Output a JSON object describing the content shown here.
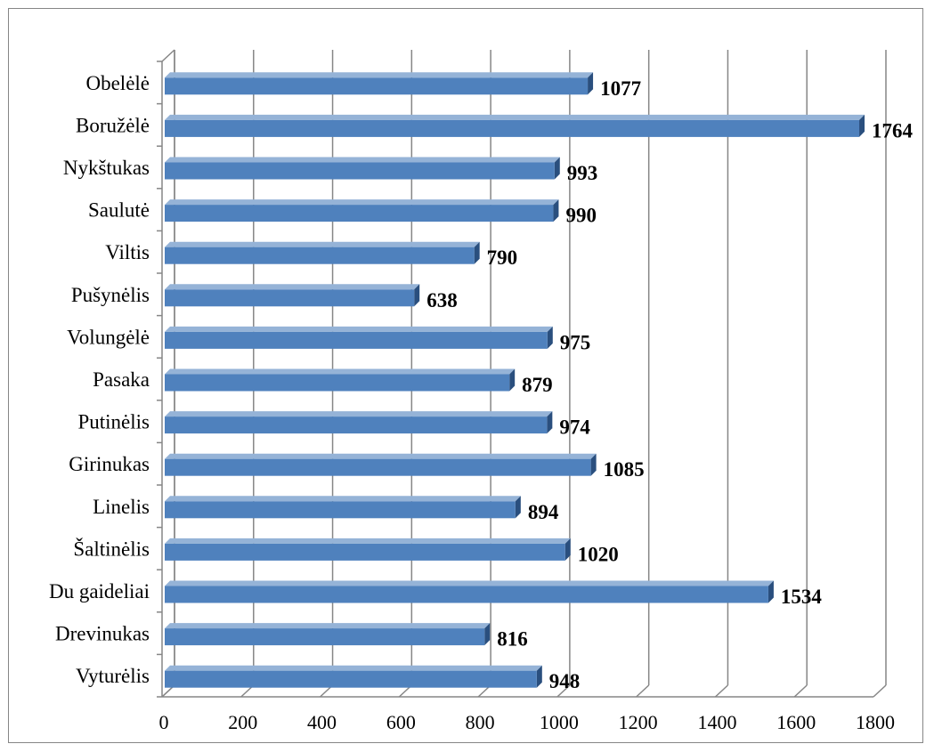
{
  "chart_data": {
    "type": "bar",
    "orientation": "horizontal",
    "style": "3d",
    "categories": [
      "Obelėlė",
      "Boružėlė",
      "Nykštukas",
      "Saulutė",
      "Viltis",
      "Pušynėlis",
      "Volungėlė",
      "Pasaka",
      "Putinėlis",
      "Girinukas",
      "Linelis",
      "Šaltinėlis",
      "Du gaideliai",
      "Drevinukas",
      "Vyturėlis"
    ],
    "values": [
      1077,
      1764,
      993,
      990,
      790,
      638,
      975,
      879,
      974,
      1085,
      894,
      1020,
      1534,
      816,
      948
    ],
    "value_labels": [
      "1077",
      "1764",
      "993",
      "990",
      "790",
      "638",
      "975",
      "879",
      "974",
      "1085",
      "894",
      "1020",
      "1534",
      "816",
      "948"
    ],
    "x_ticks": [
      "0",
      "200",
      "400",
      "600",
      "800",
      "1000",
      "1200",
      "1400",
      "1600",
      "1800"
    ],
    "xlim": [
      0,
      1800
    ],
    "title": "",
    "xlabel": "",
    "ylabel": "",
    "grid": true,
    "legend": "none",
    "colors": {
      "bar_front": "#4f81bd",
      "bar_top": "#95b3d7",
      "bar_side": "#2a4f7e",
      "grid": "#868686",
      "wall_side": "#868686"
    }
  }
}
